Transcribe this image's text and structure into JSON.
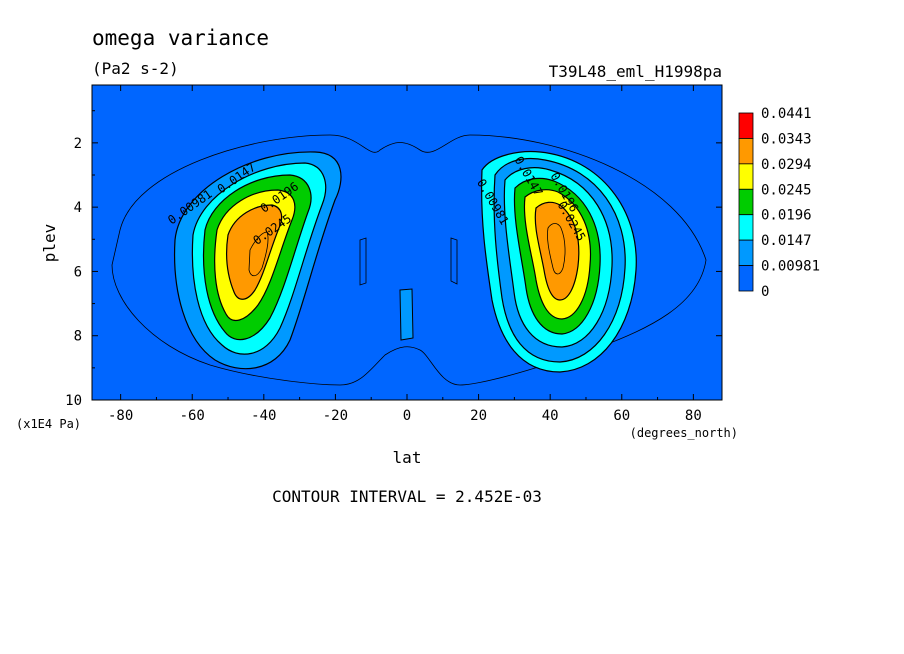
{
  "chart_data": {
    "type": "contour",
    "title": "omega variance",
    "units": "(Pa2 s-2)",
    "dataset": "T39L48_eml_H1998pa",
    "xlabel": "lat",
    "xunits": "(degrees_north)",
    "ylabel": "plev",
    "yunits": "(x1E4 Pa)",
    "xlim": [
      -88,
      88
    ],
    "ylim": [
      10,
      0.2
    ],
    "x_ticks": [
      "-80",
      "-60",
      "-40",
      "-20",
      "0",
      "20",
      "40",
      "60",
      "80"
    ],
    "y_ticks": [
      "2",
      "4",
      "6",
      "8",
      "10"
    ],
    "contour_interval": "CONTOUR INTERVAL = 2.452E-03",
    "legend": {
      "labels": [
        "0.0441",
        "0.0343",
        "0.0294",
        "0.0245",
        "0.0196",
        "0.0147",
        "0.00981",
        "0"
      ],
      "colors": [
        "#ff0000",
        "#ff9900",
        "#ffff00",
        "#00cc00",
        "#00ffff",
        "#0099ff",
        "#0066ff",
        "#0066ff"
      ]
    },
    "contour_labels": [
      {
        "text": "0.00981",
        "lat": -60,
        "plev": 4.1
      },
      {
        "text": "0.0147",
        "lat": -47,
        "plev": 3.2
      },
      {
        "text": "0.0196",
        "lat": -35,
        "plev": 3.8
      },
      {
        "text": "0.0245",
        "lat": -37,
        "plev": 4.8
      },
      {
        "text": "0.00981",
        "lat": 23,
        "plev": 3.9
      },
      {
        "text": "0.0147",
        "lat": 33,
        "plev": 3.1
      },
      {
        "text": "0.0196",
        "lat": 43,
        "plev": 3.6
      },
      {
        "text": "0.0245",
        "lat": 45,
        "plev": 4.5
      }
    ],
    "max_regions": [
      {
        "hemisphere": "south",
        "lat": -45,
        "plev": 5.2,
        "max_value": 0.0343
      },
      {
        "hemisphere": "north",
        "lat": 42,
        "plev": 5.0,
        "max_value": 0.0343
      }
    ]
  }
}
